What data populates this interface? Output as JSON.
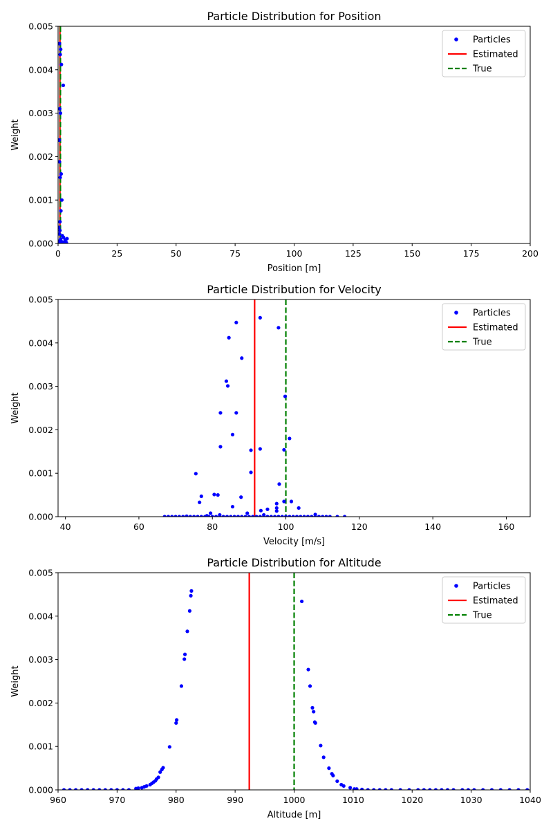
{
  "chart_data": [
    {
      "type": "scatter",
      "title": "Particle Distribution for Position",
      "xlabel": "Position [m]",
      "ylabel": "Weight",
      "xlim": [
        0,
        200
      ],
      "ylim": [
        0,
        0.005
      ],
      "xticks": [
        0,
        25,
        50,
        75,
        100,
        125,
        150,
        175,
        200
      ],
      "xtick_labels": [
        "0",
        "25",
        "50",
        "75",
        "100",
        "125",
        "150",
        "175",
        "200"
      ],
      "yticks": [
        0,
        0.001,
        0.002,
        0.003,
        0.004,
        0.005
      ],
      "ytick_labels": [
        "0.000",
        "0.001",
        "0.002",
        "0.003",
        "0.004",
        "0.005"
      ],
      "legend": {
        "position": "upper right",
        "entries": [
          {
            "label": "Particles",
            "kind": "marker",
            "color": "#0000ff"
          },
          {
            "label": "Estimated",
            "kind": "solid",
            "color": "#ff0000"
          },
          {
            "label": "True",
            "kind": "dashed",
            "color": "#008000"
          }
        ]
      },
      "vlines": [
        {
          "name": "Estimated",
          "x": 0.8,
          "color": "#ff0000",
          "dashed": false
        },
        {
          "name": "True",
          "x": 1.0,
          "color": "#008000",
          "dashed": true
        }
      ],
      "series": [
        {
          "name": "Particles",
          "color": "#0000ff",
          "x": [
            0.6,
            1.1,
            0.9,
            1.4,
            2.2,
            0.7,
            1.0,
            0.5,
            1.3,
            0.6,
            0.9,
            1.6,
            1.2,
            0.8,
            0.3,
            0.8,
            0.5,
            1.8,
            2.3,
            1.1,
            3.0,
            3.8,
            0.4,
            1.5,
            2.6,
            0.2,
            3.5,
            1.7,
            2.0,
            0.9
          ],
          "y": [
            0.0046,
            0.00447,
            0.00435,
            0.00412,
            0.00364,
            0.0031,
            0.003,
            0.00238,
            0.0016,
            0.00188,
            0.00152,
            0.001,
            0.00075,
            0.0005,
            0.00037,
            0.0003,
            0.00022,
            0.00018,
            0.00014,
            0.0001,
            8e-05,
            0.00011,
            5e-05,
            4e-05,
            3e-05,
            2e-05,
            2e-05,
            1e-05,
            1e-05,
            0.0
          ]
        }
      ]
    },
    {
      "type": "scatter",
      "title": "Particle Distribution for Velocity",
      "xlabel": "Velocity [m/s]",
      "ylabel": "Weight",
      "xlim": [
        38,
        166.5
      ],
      "ylim": [
        0,
        0.005
      ],
      "xticks": [
        40,
        60,
        80,
        100,
        120,
        140,
        160
      ],
      "xtick_labels": [
        "40",
        "60",
        "80",
        "100",
        "120",
        "140",
        "160"
      ],
      "yticks": [
        0,
        0.001,
        0.002,
        0.003,
        0.004,
        0.005
      ],
      "ytick_labels": [
        "0.000",
        "0.001",
        "0.002",
        "0.003",
        "0.004",
        "0.005"
      ],
      "legend": {
        "position": "upper right",
        "entries": [
          {
            "label": "Particles",
            "kind": "marker",
            "color": "#0000ff"
          },
          {
            "label": "Estimated",
            "kind": "solid",
            "color": "#ff0000"
          },
          {
            "label": "True",
            "kind": "dashed",
            "color": "#008000"
          }
        ]
      },
      "vlines": [
        {
          "name": "Estimated",
          "x": 91.5,
          "color": "#ff0000",
          "dashed": false
        },
        {
          "name": "True",
          "x": 100.0,
          "color": "#008000",
          "dashed": true
        }
      ],
      "series": [
        {
          "name": "Particles",
          "color": "#0000ff",
          "x": [
            93.0,
            86.5,
            98.0,
            84.5,
            88.0,
            83.8,
            84.2,
            82.2,
            86.5,
            99.8,
            85.5,
            101.0,
            82.2,
            93.0,
            90.5,
            99.5,
            75.5,
            90.5,
            98.2,
            80.5,
            81.5,
            77.0,
            87.8,
            76.5,
            99.5,
            101.5,
            97.5,
            97.5,
            85.5,
            103.5,
            97.5,
            95.0,
            93.2,
            108.0,
            79.5,
            89.5,
            82.0,
            94.0,
            78.5,
            67.0,
            68.0,
            69.0,
            70.0,
            71.0,
            72.0,
            73.0,
            74.0,
            75.0,
            76.0,
            77.0,
            78.0,
            79.0,
            80.0,
            81.0,
            82.0,
            83.0,
            84.0,
            85.0,
            86.0,
            87.0,
            88.0,
            89.0,
            90.0,
            91.0,
            92.0,
            93.0,
            94.0,
            95.0,
            96.0,
            97.0,
            98.0,
            99.0,
            100.0,
            101.0,
            102.0,
            103.0,
            104.0,
            105.0,
            106.0,
            107.0,
            108.0,
            109.0,
            110.0,
            111.0,
            112.0,
            114.0,
            116.0
          ],
          "y": [
            0.00458,
            0.00447,
            0.00435,
            0.00412,
            0.00365,
            0.00312,
            0.00301,
            0.00239,
            0.00239,
            0.00277,
            0.00189,
            0.0018,
            0.00161,
            0.00156,
            0.00153,
            0.00154,
            0.00099,
            0.00102,
            0.00075,
            0.00051,
            0.0005,
            0.00047,
            0.00045,
            0.00033,
            0.00035,
            0.00035,
            0.0003,
            0.0002,
            0.00023,
            0.0002,
            0.00013,
            0.00017,
            0.00014,
            5e-05,
            8e-05,
            8e-05,
            4e-05,
            4e-05,
            2e-05,
            0.0,
            0.0,
            0.0,
            0.0,
            0.0,
            0.0,
            1e-05,
            0.0,
            0.0,
            0.0,
            0.0,
            0.0,
            0.0,
            0.0,
            0.0,
            0.0,
            0.0,
            0.0,
            0.0,
            0.0,
            0.0,
            0.0,
            0.0,
            0.0,
            0.0,
            0.0,
            0.0,
            0.0,
            0.0,
            0.0,
            0.0,
            0.0,
            0.0,
            0.0,
            0.0,
            0.0,
            0.0,
            0.0,
            0.0,
            0.0,
            0.0,
            0.0,
            0.0,
            0.0,
            0.0,
            0.0,
            0.0,
            0.0
          ]
        }
      ]
    },
    {
      "type": "scatter",
      "title": "Particle Distribution for Altitude",
      "xlabel": "Altitude [m]",
      "ylabel": "Weight",
      "xlim": [
        960,
        1040
      ],
      "ylim": [
        0,
        0.005
      ],
      "xticks": [
        960,
        970,
        980,
        990,
        1000,
        1010,
        1020,
        1030,
        1040
      ],
      "xtick_labels": [
        "960",
        "970",
        "980",
        "990",
        "1000",
        "1010",
        "1020",
        "1030",
        "1040"
      ],
      "yticks": [
        0,
        0.001,
        0.002,
        0.003,
        0.004,
        0.005
      ],
      "ytick_labels": [
        "0.000",
        "0.001",
        "0.002",
        "0.003",
        "0.004",
        "0.005"
      ],
      "legend": {
        "position": "upper right",
        "entries": [
          {
            "label": "Particles",
            "kind": "marker",
            "color": "#0000ff"
          },
          {
            "label": "Estimated",
            "kind": "solid",
            "color": "#ff0000"
          },
          {
            "label": "True",
            "kind": "dashed",
            "color": "#008000"
          }
        ]
      },
      "vlines": [
        {
          "name": "Estimated",
          "x": 992.4,
          "color": "#ff0000",
          "dashed": false
        },
        {
          "name": "True",
          "x": 1000.0,
          "color": "#008000",
          "dashed": true
        }
      ],
      "series": [
        {
          "name": "Particles",
          "color": "#0000ff",
          "x": [
            982.6,
            982.5,
            1001.3,
            982.3,
            981.9,
            981.5,
            981.4,
            1002.4,
            980.9,
            1002.7,
            1003.1,
            1003.3,
            980.1,
            980.0,
            1003.5,
            1003.6,
            1004.5,
            978.9,
            1005.0,
            977.8,
            1005.9,
            977.6,
            977.3,
            1006.4,
            1006.6,
            977.0,
            976.7,
            976.5,
            976.2,
            975.9,
            1007.3,
            975.6,
            1008.0,
            975.0,
            1008.4,
            974.6,
            974.2,
            1009.5,
            973.6,
            973.2,
            1010.2,
            1010.6,
            961.0,
            962.0,
            963.0,
            964.0,
            965.0,
            966.0,
            967.0,
            968.0,
            969.0,
            970.0,
            971.0,
            972.0,
            1011.5,
            1012.5,
            1013.5,
            1014.5,
            1015.5,
            1016.5,
            1018.0,
            1019.5,
            1021.0,
            1022.0,
            1023.0,
            1024.0,
            1025.0,
            1026.0,
            1027.0,
            1028.5,
            1029.5,
            1030.5,
            1032.0,
            1033.5,
            1035.0,
            1036.5,
            1038.0,
            1039.5
          ],
          "y": [
            0.00458,
            0.00447,
            0.00434,
            0.00412,
            0.00365,
            0.00312,
            0.00301,
            0.00277,
            0.00239,
            0.00239,
            0.00189,
            0.0018,
            0.00161,
            0.00154,
            0.00156,
            0.00154,
            0.00102,
            0.00099,
            0.00075,
            0.00051,
            0.0005,
            0.00047,
            0.00041,
            0.00037,
            0.00033,
            0.00029,
            0.00025,
            0.00021,
            0.00018,
            0.00015,
            0.0002,
            0.00012,
            0.00012,
            9e-05,
            9e-05,
            7e-05,
            5e-05,
            5e-05,
            4e-05,
            3e-05,
            2e-05,
            2e-05,
            0.0,
            0.0,
            0.0,
            0.0,
            0.0,
            0.0,
            0.0,
            0.0,
            0.0,
            0.0,
            0.0,
            0.0,
            1e-05,
            0.0,
            0.0,
            0.0,
            0.0,
            0.0,
            0.0,
            0.0,
            0.0,
            0.0,
            0.0,
            0.0,
            0.0,
            0.0,
            0.0,
            0.0,
            0.0,
            0.0,
            0.0,
            0.0,
            0.0,
            0.0,
            0.0,
            0.0
          ]
        }
      ]
    }
  ]
}
